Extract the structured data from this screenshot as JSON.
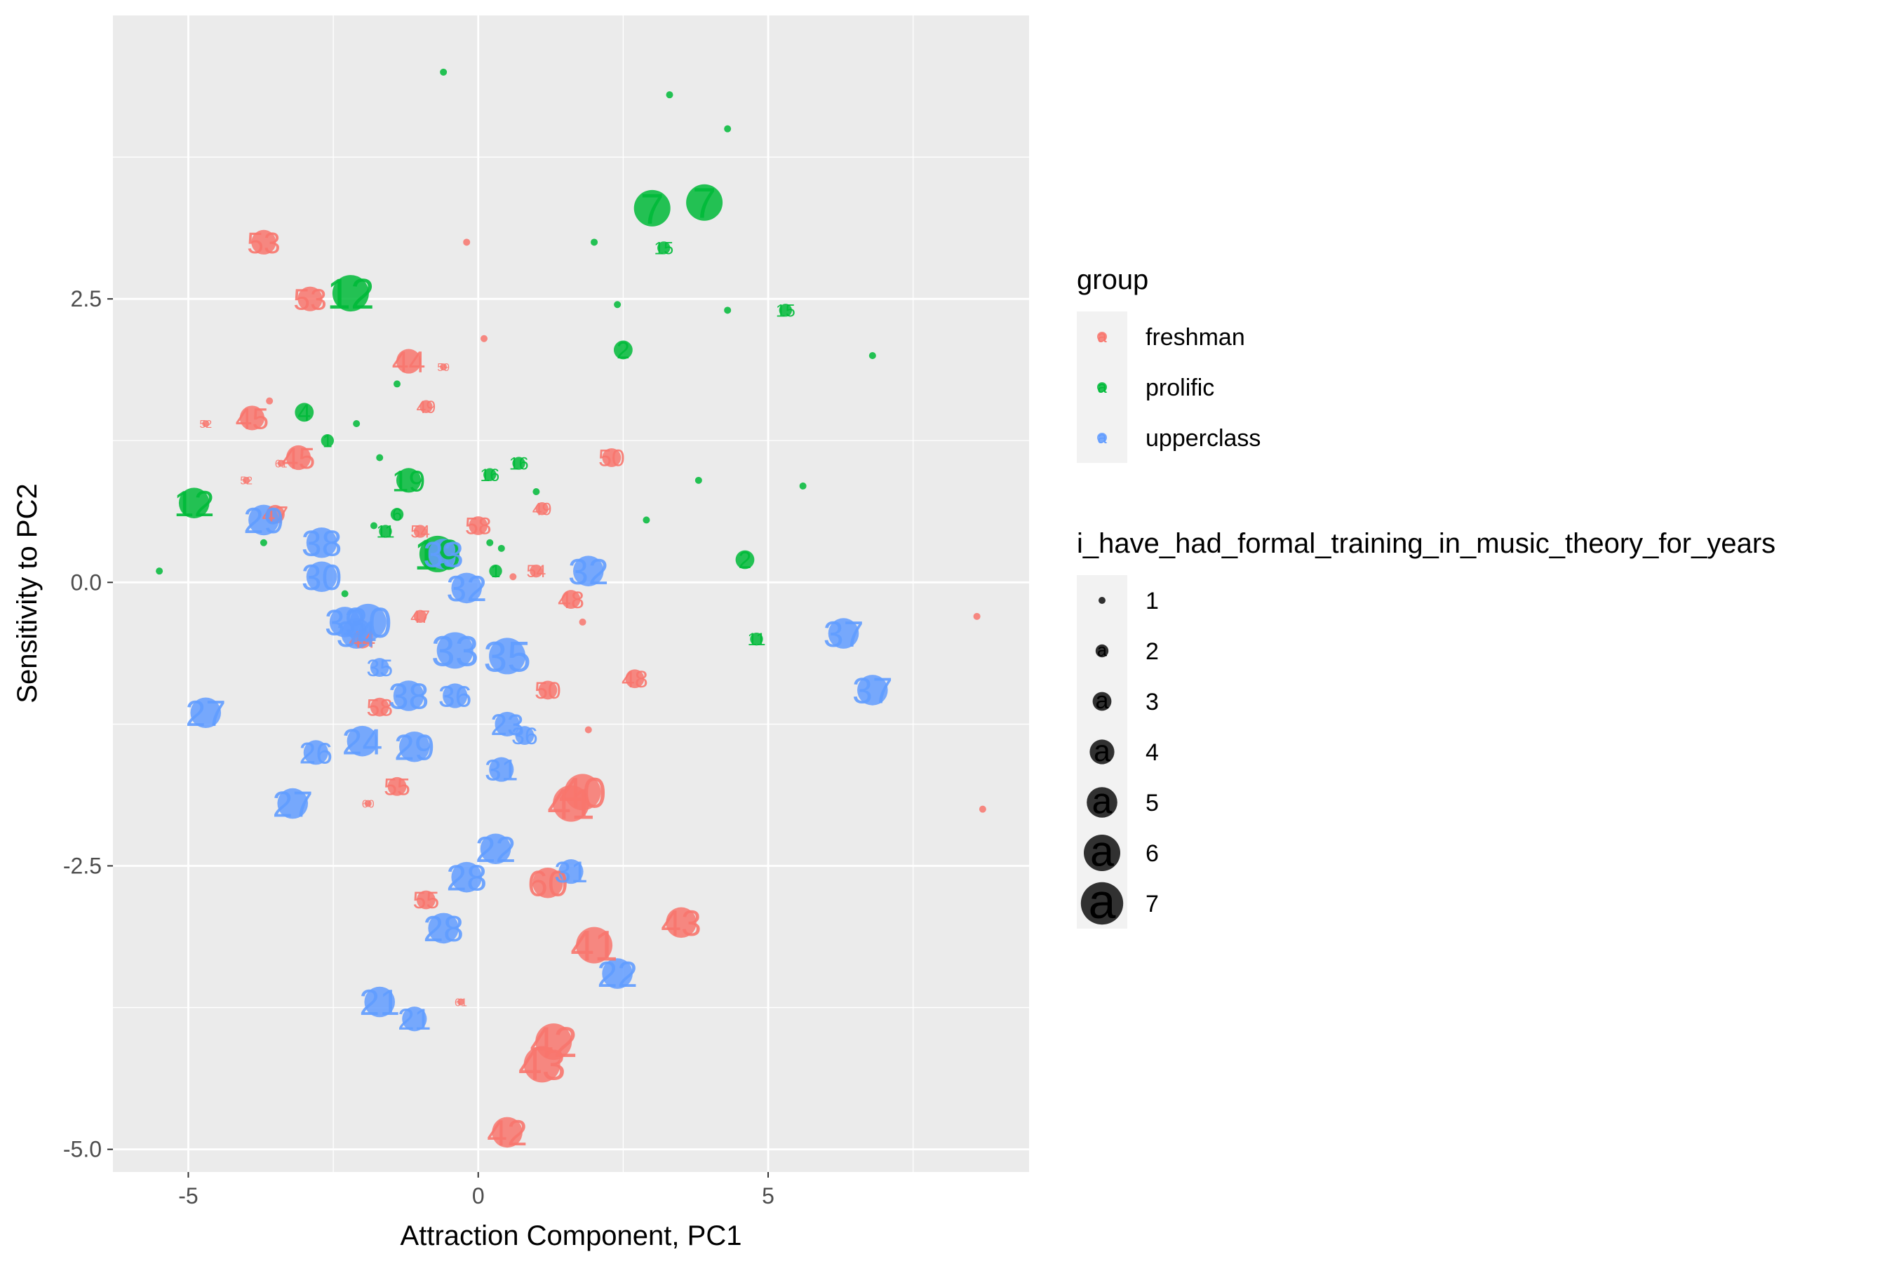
{
  "chart_data": {
    "type": "scatter",
    "title": "",
    "xlabel": "Attraction Component, PC1",
    "ylabel": "Sensitivity to PC2",
    "xlim": [
      -6.3,
      9.5
    ],
    "ylim": [
      -5.2,
      5.0
    ],
    "xticks": [
      -5,
      0,
      5
    ],
    "xtick_labels": [
      "-5",
      "0",
      "5"
    ],
    "yticks": [
      -5.0,
      -2.5,
      0.0,
      2.5
    ],
    "ytick_labels": [
      "-5.0",
      "-2.5",
      "0.0",
      "2.5"
    ],
    "grid": true,
    "legend_position": "right",
    "color_legend": {
      "title": "group",
      "glyph": "a",
      "entries": [
        {
          "name": "freshman",
          "color": "#F8766D"
        },
        {
          "name": "prolific",
          "color": "#00BA38"
        },
        {
          "name": "upperclass",
          "color": "#619CFF"
        }
      ]
    },
    "size_legend": {
      "title": "i_have_had_formal_training_in_music_theory_for_years",
      "glyph": "a",
      "values": [
        1,
        2,
        3,
        4,
        5,
        6,
        7
      ]
    },
    "points": [
      {
        "x": -0.6,
        "y": 4.5,
        "group": "prolific",
        "size": 1
      },
      {
        "x": 3.3,
        "y": 4.3,
        "group": "prolific",
        "size": 1
      },
      {
        "x": 4.3,
        "y": 4.0,
        "group": "prolific",
        "size": 1
      },
      {
        "x": 3.0,
        "y": 3.3,
        "group": "prolific",
        "size": 6,
        "label": "7"
      },
      {
        "x": 3.9,
        "y": 3.35,
        "group": "prolific",
        "size": 6,
        "label": "7"
      },
      {
        "x": 2.0,
        "y": 3.0,
        "group": "prolific",
        "size": 1
      },
      {
        "x": 3.2,
        "y": 2.95,
        "group": "prolific",
        "size": 2,
        "label": "15"
      },
      {
        "x": -2.2,
        "y": 2.55,
        "group": "prolific",
        "size": 6,
        "label": "12"
      },
      {
        "x": 2.4,
        "y": 2.45,
        "group": "prolific",
        "size": 1
      },
      {
        "x": 4.3,
        "y": 2.4,
        "group": "prolific",
        "size": 1
      },
      {
        "x": 5.3,
        "y": 2.4,
        "group": "prolific",
        "size": 2,
        "label": "15"
      },
      {
        "x": 2.5,
        "y": 2.05,
        "group": "prolific",
        "size": 3,
        "label": "2"
      },
      {
        "x": 6.8,
        "y": 2.0,
        "group": "prolific",
        "size": 1
      },
      {
        "x": -1.4,
        "y": 1.75,
        "group": "prolific",
        "size": 1
      },
      {
        "x": -3.0,
        "y": 1.5,
        "group": "prolific",
        "size": 3,
        "label": "4"
      },
      {
        "x": -2.1,
        "y": 1.4,
        "group": "prolific",
        "size": 1
      },
      {
        "x": -2.6,
        "y": 1.25,
        "group": "prolific",
        "size": 2,
        "label": "1"
      },
      {
        "x": -1.7,
        "y": 1.1,
        "group": "prolific",
        "size": 1
      },
      {
        "x": -1.2,
        "y": 0.9,
        "group": "prolific",
        "size": 4,
        "label": "19"
      },
      {
        "x": 0.2,
        "y": 0.95,
        "group": "prolific",
        "size": 2,
        "label": "16"
      },
      {
        "x": 0.7,
        "y": 1.05,
        "group": "prolific",
        "size": 2,
        "label": "16"
      },
      {
        "x": 3.8,
        "y": 0.9,
        "group": "prolific",
        "size": 1
      },
      {
        "x": 5.6,
        "y": 0.85,
        "group": "prolific",
        "size": 1
      },
      {
        "x": -4.9,
        "y": 0.7,
        "group": "prolific",
        "size": 5,
        "label": "12"
      },
      {
        "x": 1.0,
        "y": 0.8,
        "group": "prolific",
        "size": 1
      },
      {
        "x": -1.4,
        "y": 0.6,
        "group": "prolific",
        "size": 2,
        "label": "6"
      },
      {
        "x": 2.9,
        "y": 0.55,
        "group": "prolific",
        "size": 1
      },
      {
        "x": -1.8,
        "y": 0.5,
        "group": "prolific",
        "size": 1
      },
      {
        "x": -1.6,
        "y": 0.45,
        "group": "prolific",
        "size": 2,
        "label": "11"
      },
      {
        "x": 0.2,
        "y": 0.35,
        "group": "prolific",
        "size": 1
      },
      {
        "x": -3.7,
        "y": 0.35,
        "group": "prolific",
        "size": 1
      },
      {
        "x": 0.4,
        "y": 0.3,
        "group": "prolific",
        "size": 1
      },
      {
        "x": -0.7,
        "y": 0.25,
        "group": "prolific",
        "size": 6,
        "label": "19"
      },
      {
        "x": 4.6,
        "y": 0.2,
        "group": "prolific",
        "size": 3,
        "label": "2"
      },
      {
        "x": 0.3,
        "y": 0.1,
        "group": "prolific",
        "size": 2,
        "label": "1"
      },
      {
        "x": -5.5,
        "y": 0.1,
        "group": "prolific",
        "size": 1
      },
      {
        "x": -2.3,
        "y": -0.1,
        "group": "prolific",
        "size": 1
      },
      {
        "x": 4.8,
        "y": -0.5,
        "group": "prolific",
        "size": 2,
        "label": "11"
      },
      {
        "x": -3.7,
        "y": 3.0,
        "group": "freshman",
        "size": 4,
        "label": "53"
      },
      {
        "x": -0.2,
        "y": 3.0,
        "group": "freshman",
        "size": 1
      },
      {
        "x": -2.9,
        "y": 2.5,
        "group": "freshman",
        "size": 4,
        "label": "53"
      },
      {
        "x": 0.1,
        "y": 2.15,
        "group": "freshman",
        "size": 1
      },
      {
        "x": -1.2,
        "y": 1.95,
        "group": "freshman",
        "size": 4,
        "label": "44"
      },
      {
        "x": -0.6,
        "y": 1.9,
        "group": "freshman",
        "size": 1,
        "label": "59"
      },
      {
        "x": -0.9,
        "y": 1.55,
        "group": "freshman",
        "size": 2,
        "label": "49"
      },
      {
        "x": -3.9,
        "y": 1.45,
        "group": "freshman",
        "size": 4,
        "label": "45"
      },
      {
        "x": -4.7,
        "y": 1.4,
        "group": "freshman",
        "size": 1,
        "label": "52"
      },
      {
        "x": -3.6,
        "y": 1.6,
        "group": "freshman",
        "size": 1
      },
      {
        "x": -3.1,
        "y": 1.1,
        "group": "freshman",
        "size": 4,
        "label": "45"
      },
      {
        "x": -3.4,
        "y": 1.05,
        "group": "freshman",
        "size": 1,
        "label": "61"
      },
      {
        "x": 2.3,
        "y": 1.1,
        "group": "freshman",
        "size": 3,
        "label": "50"
      },
      {
        "x": -4.0,
        "y": 0.9,
        "group": "freshman",
        "size": 1,
        "label": "52"
      },
      {
        "x": -3.5,
        "y": 0.6,
        "group": "freshman",
        "size": 3,
        "label": "47"
      },
      {
        "x": 1.1,
        "y": 0.65,
        "group": "freshman",
        "size": 2,
        "label": "49"
      },
      {
        "x": -1.0,
        "y": 0.45,
        "group": "freshman",
        "size": 2,
        "label": "54"
      },
      {
        "x": 0.0,
        "y": 0.5,
        "group": "freshman",
        "size": 3,
        "label": "58"
      },
      {
        "x": 1.0,
        "y": 0.1,
        "group": "freshman",
        "size": 2,
        "label": "54"
      },
      {
        "x": 0.6,
        "y": 0.05,
        "group": "freshman",
        "size": 1
      },
      {
        "x": 1.6,
        "y": -0.15,
        "group": "freshman",
        "size": 3,
        "label": "48"
      },
      {
        "x": 1.8,
        "y": -0.35,
        "group": "freshman",
        "size": 1
      },
      {
        "x": -1.0,
        "y": -0.3,
        "group": "freshman",
        "size": 2,
        "label": "47"
      },
      {
        "x": 8.6,
        "y": -0.3,
        "group": "freshman",
        "size": 1
      },
      {
        "x": -2.0,
        "y": -0.5,
        "group": "freshman",
        "size": 3,
        "label": "44"
      },
      {
        "x": 2.7,
        "y": -0.85,
        "group": "freshman",
        "size": 3,
        "label": "48"
      },
      {
        "x": 1.2,
        "y": -0.95,
        "group": "freshman",
        "size": 3,
        "label": "50"
      },
      {
        "x": -1.7,
        "y": -1.1,
        "group": "freshman",
        "size": 3,
        "label": "58"
      },
      {
        "x": 1.9,
        "y": -1.3,
        "group": "freshman",
        "size": 1
      },
      {
        "x": -1.4,
        "y": -1.8,
        "group": "freshman",
        "size": 3,
        "label": "55"
      },
      {
        "x": 1.8,
        "y": -1.85,
        "group": "freshman",
        "size": 6,
        "label": "40"
      },
      {
        "x": 1.6,
        "y": -1.95,
        "group": "freshman",
        "size": 6,
        "label": "41"
      },
      {
        "x": -1.9,
        "y": -1.95,
        "group": "freshman",
        "size": 1,
        "label": "60"
      },
      {
        "x": 8.7,
        "y": -2.0,
        "group": "freshman",
        "size": 1
      },
      {
        "x": 1.2,
        "y": -2.65,
        "group": "freshman",
        "size": 5,
        "label": "60"
      },
      {
        "x": -0.9,
        "y": -2.8,
        "group": "freshman",
        "size": 3,
        "label": "55"
      },
      {
        "x": 3.5,
        "y": -3.0,
        "group": "freshman",
        "size": 5,
        "label": "43"
      },
      {
        "x": 2.0,
        "y": -3.2,
        "group": "freshman",
        "size": 6,
        "label": "41"
      },
      {
        "x": -0.3,
        "y": -3.7,
        "group": "freshman",
        "size": 1,
        "label": "61"
      },
      {
        "x": 1.3,
        "y": -4.05,
        "group": "freshman",
        "size": 6,
        "label": "42"
      },
      {
        "x": 1.1,
        "y": -4.25,
        "group": "freshman",
        "size": 6,
        "label": "43"
      },
      {
        "x": 0.5,
        "y": -4.85,
        "group": "freshman",
        "size": 5,
        "label": "42"
      },
      {
        "x": -3.7,
        "y": 0.55,
        "group": "upperclass",
        "size": 5,
        "label": "29"
      },
      {
        "x": -2.7,
        "y": 0.35,
        "group": "upperclass",
        "size": 5,
        "label": "38"
      },
      {
        "x": -0.6,
        "y": 0.25,
        "group": "upperclass",
        "size": 5,
        "label": "33"
      },
      {
        "x": -2.7,
        "y": 0.05,
        "group": "upperclass",
        "size": 5,
        "label": "30"
      },
      {
        "x": 1.9,
        "y": 0.1,
        "group": "upperclass",
        "size": 5,
        "label": "32"
      },
      {
        "x": -0.2,
        "y": -0.05,
        "group": "upperclass",
        "size": 5,
        "label": "32"
      },
      {
        "x": -2.3,
        "y": -0.35,
        "group": "upperclass",
        "size": 5,
        "label": "39"
      },
      {
        "x": -1.9,
        "y": -0.35,
        "group": "upperclass",
        "size": 6,
        "label": "30"
      },
      {
        "x": -2.1,
        "y": -0.45,
        "group": "upperclass",
        "size": 5,
        "label": "34"
      },
      {
        "x": 6.3,
        "y": -0.45,
        "group": "upperclass",
        "size": 5,
        "label": "37"
      },
      {
        "x": -0.4,
        "y": -0.6,
        "group": "upperclass",
        "size": 6,
        "label": "33"
      },
      {
        "x": 0.5,
        "y": -0.65,
        "group": "upperclass",
        "size": 6,
        "label": "35"
      },
      {
        "x": -1.7,
        "y": -0.75,
        "group": "upperclass",
        "size": 3,
        "label": "35"
      },
      {
        "x": 6.8,
        "y": -0.95,
        "group": "upperclass",
        "size": 5,
        "label": "37"
      },
      {
        "x": -1.2,
        "y": -1.0,
        "group": "upperclass",
        "size": 5,
        "label": "38"
      },
      {
        "x": -0.4,
        "y": -1.0,
        "group": "upperclass",
        "size": 4,
        "label": "36"
      },
      {
        "x": -4.7,
        "y": -1.15,
        "group": "upperclass",
        "size": 5,
        "label": "27"
      },
      {
        "x": 0.5,
        "y": -1.25,
        "group": "upperclass",
        "size": 4,
        "label": "23"
      },
      {
        "x": 0.8,
        "y": -1.35,
        "group": "upperclass",
        "size": 3,
        "label": "36"
      },
      {
        "x": -2.0,
        "y": -1.4,
        "group": "upperclass",
        "size": 5,
        "label": "24"
      },
      {
        "x": -1.1,
        "y": -1.45,
        "group": "upperclass",
        "size": 5,
        "label": "29"
      },
      {
        "x": -2.8,
        "y": -1.5,
        "group": "upperclass",
        "size": 4,
        "label": "26"
      },
      {
        "x": 0.4,
        "y": -1.65,
        "group": "upperclass",
        "size": 4,
        "label": "31"
      },
      {
        "x": -3.2,
        "y": -1.95,
        "group": "upperclass",
        "size": 5,
        "label": "27"
      },
      {
        "x": 0.3,
        "y": -2.35,
        "group": "upperclass",
        "size": 5,
        "label": "22"
      },
      {
        "x": -0.2,
        "y": -2.6,
        "group": "upperclass",
        "size": 5,
        "label": "28"
      },
      {
        "x": 1.6,
        "y": -2.55,
        "group": "upperclass",
        "size": 4,
        "label": "31"
      },
      {
        "x": -0.6,
        "y": -3.05,
        "group": "upperclass",
        "size": 5,
        "label": "28"
      },
      {
        "x": 2.4,
        "y": -3.45,
        "group": "upperclass",
        "size": 5,
        "label": "22"
      },
      {
        "x": -1.7,
        "y": -3.7,
        "group": "upperclass",
        "size": 5,
        "label": "21"
      },
      {
        "x": -1.1,
        "y": -3.85,
        "group": "upperclass",
        "size": 4,
        "label": "21"
      }
    ]
  }
}
